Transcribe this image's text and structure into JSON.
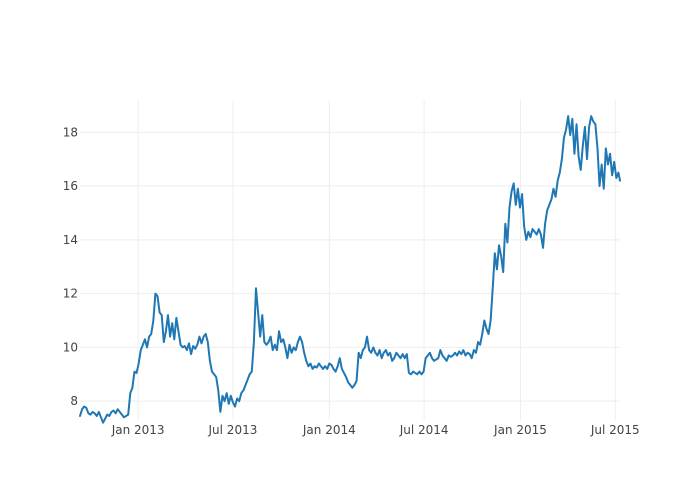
{
  "chart_data": {
    "type": "line",
    "title": "",
    "xlabel": "",
    "ylabel": "",
    "x_tick_labels": [
      "Jan 2013",
      "Jul 2013",
      "Jan 2014",
      "Jul 2014",
      "Jan 2015",
      "Jul 2015"
    ],
    "x_ticks": [
      "2013-01-01",
      "2013-07-01",
      "2014-01-01",
      "2014-07-01",
      "2015-01-01",
      "2015-07-01"
    ],
    "y_ticks": [
      8,
      10,
      12,
      14,
      16,
      18
    ],
    "y_tick_labels": [
      "8",
      "10",
      "12",
      "14",
      "16",
      "18"
    ],
    "xlim": [
      "2012-09-12",
      "2015-07-10"
    ],
    "ylim": [
      7.3,
      19.2
    ],
    "grid": true,
    "legend": false,
    "line_color": "#1f77b4",
    "grid_color": "#eeeeee",
    "series": [
      {
        "x": [
          "2012-09-12",
          "2012-09-16",
          "2012-09-20",
          "2012-09-24",
          "2012-09-28",
          "2012-10-02",
          "2012-10-06",
          "2012-10-10",
          "2012-10-14",
          "2012-10-18",
          "2012-10-22",
          "2012-10-26",
          "2012-10-30",
          "2012-11-03",
          "2012-11-07",
          "2012-11-11",
          "2012-11-15",
          "2012-11-19",
          "2012-11-23",
          "2012-11-27",
          "2012-12-01",
          "2012-12-05",
          "2012-12-09",
          "2012-12-13",
          "2012-12-17",
          "2012-12-21",
          "2012-12-25",
          "2012-12-29",
          "2013-01-02",
          "2013-01-06",
          "2013-01-10",
          "2013-01-14",
          "2013-01-18",
          "2013-01-22",
          "2013-01-26",
          "2013-01-30",
          "2013-02-03",
          "2013-02-07",
          "2013-02-11",
          "2013-02-15",
          "2013-02-19",
          "2013-02-23",
          "2013-02-27",
          "2013-03-03",
          "2013-03-07",
          "2013-03-11",
          "2013-03-15",
          "2013-03-19",
          "2013-03-23",
          "2013-03-27",
          "2013-03-31",
          "2013-04-04",
          "2013-04-08",
          "2013-04-12",
          "2013-04-16",
          "2013-04-20",
          "2013-04-24",
          "2013-04-28",
          "2013-05-02",
          "2013-05-06",
          "2013-05-10",
          "2013-05-14",
          "2013-05-18",
          "2013-05-22",
          "2013-05-26",
          "2013-05-30",
          "2013-06-03",
          "2013-06-07",
          "2013-06-11",
          "2013-06-15",
          "2013-06-19",
          "2013-06-23",
          "2013-06-27",
          "2013-07-01",
          "2013-07-05",
          "2013-07-09",
          "2013-07-13",
          "2013-07-17",
          "2013-07-21",
          "2013-07-25",
          "2013-07-29",
          "2013-08-02",
          "2013-08-06",
          "2013-08-10",
          "2013-08-14",
          "2013-08-18",
          "2013-08-22",
          "2013-08-26",
          "2013-08-30",
          "2013-09-03",
          "2013-09-07",
          "2013-09-11",
          "2013-09-15",
          "2013-09-19",
          "2013-09-23",
          "2013-09-27",
          "2013-10-01",
          "2013-10-05",
          "2013-10-09",
          "2013-10-13",
          "2013-10-17",
          "2013-10-21",
          "2013-10-25",
          "2013-10-29",
          "2013-11-02",
          "2013-11-06",
          "2013-11-10",
          "2013-11-14",
          "2013-11-18",
          "2013-11-22",
          "2013-11-26",
          "2013-11-30",
          "2013-12-04",
          "2013-12-08",
          "2013-12-12",
          "2013-12-16",
          "2013-12-20",
          "2013-12-24",
          "2013-12-28",
          "2014-01-01",
          "2014-01-05",
          "2014-01-09",
          "2014-01-13",
          "2014-01-17",
          "2014-01-21",
          "2014-01-25",
          "2014-01-29",
          "2014-02-02",
          "2014-02-06",
          "2014-02-10",
          "2014-02-14",
          "2014-02-18",
          "2014-02-22",
          "2014-02-26",
          "2014-03-02",
          "2014-03-06",
          "2014-03-10",
          "2014-03-14",
          "2014-03-18",
          "2014-03-22",
          "2014-03-26",
          "2014-03-30",
          "2014-04-03",
          "2014-04-07",
          "2014-04-11",
          "2014-04-15",
          "2014-04-19",
          "2014-04-23",
          "2014-04-27",
          "2014-05-01",
          "2014-05-05",
          "2014-05-09",
          "2014-05-13",
          "2014-05-17",
          "2014-05-21",
          "2014-05-25",
          "2014-05-29",
          "2014-06-02",
          "2014-06-06",
          "2014-06-10",
          "2014-06-14",
          "2014-06-18",
          "2014-06-22",
          "2014-06-26",
          "2014-06-30",
          "2014-07-04",
          "2014-07-08",
          "2014-07-12",
          "2014-07-16",
          "2014-07-20",
          "2014-07-24",
          "2014-07-28",
          "2014-08-01",
          "2014-08-05",
          "2014-08-09",
          "2014-08-13",
          "2014-08-17",
          "2014-08-21",
          "2014-08-25",
          "2014-08-29",
          "2014-09-02",
          "2014-09-06",
          "2014-09-10",
          "2014-09-14",
          "2014-09-18",
          "2014-09-22",
          "2014-09-26",
          "2014-09-30",
          "2014-10-04",
          "2014-10-08",
          "2014-10-12",
          "2014-10-16",
          "2014-10-20",
          "2014-10-24",
          "2014-10-28",
          "2014-11-01",
          "2014-11-05",
          "2014-11-09",
          "2014-11-13",
          "2014-11-17",
          "2014-11-21",
          "2014-11-25",
          "2014-11-29",
          "2014-12-03",
          "2014-12-07",
          "2014-12-11",
          "2014-12-15",
          "2014-12-19",
          "2014-12-23",
          "2014-12-27",
          "2014-12-31",
          "2015-01-04",
          "2015-01-08",
          "2015-01-12",
          "2015-01-16",
          "2015-01-20",
          "2015-01-24",
          "2015-01-28",
          "2015-02-01",
          "2015-02-05",
          "2015-02-09",
          "2015-02-13",
          "2015-02-17",
          "2015-02-21",
          "2015-02-25",
          "2015-03-01",
          "2015-03-05",
          "2015-03-09",
          "2015-03-13",
          "2015-03-17",
          "2015-03-21",
          "2015-03-25",
          "2015-03-29",
          "2015-04-02",
          "2015-04-06",
          "2015-04-10",
          "2015-04-14",
          "2015-04-18",
          "2015-04-22",
          "2015-04-26",
          "2015-04-30",
          "2015-05-04",
          "2015-05-08",
          "2015-05-12",
          "2015-05-16",
          "2015-05-20",
          "2015-05-24",
          "2015-05-28",
          "2015-06-01",
          "2015-06-05",
          "2015-06-09",
          "2015-06-13",
          "2015-06-17",
          "2015-06-21",
          "2015-06-25",
          "2015-06-29",
          "2015-07-03",
          "2015-07-07",
          "2015-07-10"
        ],
        "y": [
          7.45,
          7.7,
          7.8,
          7.75,
          7.55,
          7.5,
          7.6,
          7.55,
          7.45,
          7.6,
          7.4,
          7.2,
          7.35,
          7.5,
          7.45,
          7.6,
          7.65,
          7.55,
          7.7,
          7.6,
          7.5,
          7.4,
          7.45,
          7.5,
          8.3,
          8.5,
          9.1,
          9.05,
          9.4,
          9.9,
          10.1,
          10.3,
          10.0,
          10.4,
          10.5,
          11.0,
          12.0,
          11.9,
          11.3,
          11.2,
          10.2,
          10.6,
          11.2,
          10.4,
          10.9,
          10.3,
          11.1,
          10.6,
          10.1,
          10.0,
          10.05,
          9.9,
          10.15,
          9.75,
          10.05,
          9.95,
          10.1,
          10.4,
          10.15,
          10.4,
          10.5,
          10.2,
          9.5,
          9.1,
          9.0,
          8.9,
          8.4,
          7.6,
          8.2,
          8.0,
          8.3,
          7.9,
          8.2,
          7.95,
          7.8,
          8.1,
          8.0,
          8.3,
          8.4,
          8.6,
          8.8,
          9.0,
          9.1,
          10.2,
          12.2,
          11.3,
          10.4,
          11.2,
          10.2,
          10.1,
          10.2,
          10.4,
          9.9,
          10.1,
          9.9,
          10.6,
          10.2,
          10.3,
          10.0,
          9.6,
          10.1,
          9.8,
          10.0,
          9.9,
          10.2,
          10.4,
          10.2,
          9.8,
          9.5,
          9.3,
          9.4,
          9.2,
          9.3,
          9.25,
          9.4,
          9.3,
          9.2,
          9.3,
          9.2,
          9.4,
          9.35,
          9.2,
          9.1,
          9.3,
          9.6,
          9.2,
          9.05,
          8.9,
          8.7,
          8.6,
          8.5,
          8.6,
          8.75,
          9.8,
          9.6,
          9.9,
          10.0,
          10.4,
          9.9,
          9.8,
          10.0,
          9.8,
          9.7,
          9.9,
          9.6,
          9.8,
          9.9,
          9.7,
          9.8,
          9.5,
          9.6,
          9.8,
          9.7,
          9.6,
          9.75,
          9.6,
          9.75,
          9.05,
          9.0,
          9.1,
          9.05,
          9.0,
          9.1,
          9.0,
          9.1,
          9.6,
          9.7,
          9.8,
          9.6,
          9.5,
          9.55,
          9.6,
          9.9,
          9.7,
          9.6,
          9.5,
          9.7,
          9.65,
          9.7,
          9.8,
          9.7,
          9.85,
          9.75,
          9.9,
          9.7,
          9.8,
          9.75,
          9.6,
          9.9,
          9.8,
          10.2,
          10.1,
          10.5,
          11.0,
          10.7,
          10.5,
          11.0,
          12.2,
          13.5,
          12.9,
          13.8,
          13.4,
          12.8,
          14.6,
          13.9,
          15.2,
          15.8,
          16.1,
          15.3,
          15.9,
          15.2,
          15.7,
          14.5,
          14.0,
          14.3,
          14.1,
          14.4,
          14.3,
          14.2,
          14.4,
          14.2,
          13.7,
          14.6,
          15.1,
          15.3,
          15.5,
          15.9,
          15.6,
          16.2,
          16.5,
          17.0,
          17.8,
          18.1,
          18.6,
          17.9,
          18.5,
          17.2,
          18.3,
          17.1,
          16.6,
          17.5,
          18.2,
          17.0,
          18.2,
          18.6,
          18.4,
          18.3,
          17.4,
          16.0,
          16.8,
          15.9,
          17.4,
          16.8,
          17.2,
          16.4,
          16.9,
          16.3,
          16.5,
          16.2
        ]
      }
    ]
  }
}
